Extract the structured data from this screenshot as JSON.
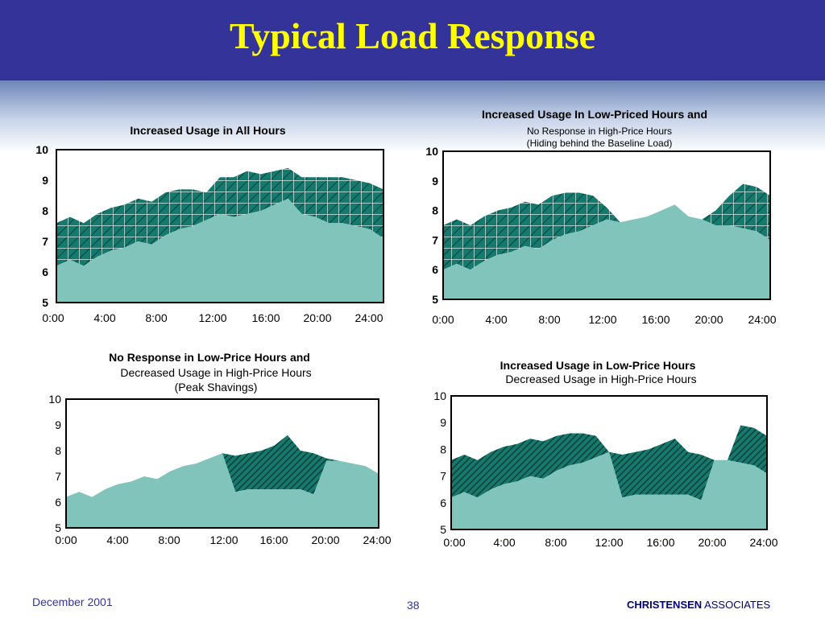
{
  "slide": {
    "title": "Typical Load Response",
    "footer": {
      "date": "December 2001",
      "page": "38",
      "company_bold": "CHRISTENSEN",
      "company_rest": "ASSOCIATES"
    }
  },
  "colors": {
    "header": "#333399",
    "title": "#ffff00",
    "baseline": "#80c4bb",
    "response": "#157a6e"
  },
  "chart_data": [
    {
      "type": "area",
      "title": "Increased Usage in All Hours",
      "subtitle": [
        "",
        ""
      ],
      "x_tick_labels": [
        "0:00",
        "4:00",
        "8:00",
        "12:00",
        "16:00",
        "20:00",
        "24:00"
      ],
      "y_ticks": [
        10,
        9,
        8,
        7,
        6,
        5
      ],
      "ylim": [
        5,
        10
      ],
      "x": [
        0,
        1,
        2,
        3,
        4,
        5,
        6,
        7,
        8,
        9,
        10,
        11,
        12,
        13,
        14,
        15,
        16,
        17,
        18,
        19,
        20,
        21,
        22,
        23,
        24
      ],
      "series": [
        {
          "values": [
            6.2,
            6.4,
            6.2,
            6.5,
            6.7,
            6.8,
            7.0,
            6.9,
            7.2,
            7.4,
            7.5,
            7.7,
            7.9,
            7.8,
            7.9,
            8.0,
            8.2,
            8.4,
            7.9,
            7.8,
            7.6,
            7.6,
            7.5,
            7.4,
            7.1
          ]
        },
        {
          "values": [
            7.6,
            7.8,
            7.6,
            7.9,
            8.1,
            8.2,
            8.4,
            8.3,
            8.6,
            8.7,
            8.7,
            8.6,
            9.1,
            9.1,
            9.3,
            9.2,
            9.3,
            9.4,
            9.1,
            9.1,
            9.1,
            9.1,
            9.0,
            8.9,
            8.7
          ]
        }
      ]
    },
    {
      "type": "area",
      "title": "Increased Usage In Low-Priced Hours and",
      "subtitle": [
        "No Response in High-Price Hours",
        "(Hiding behind the Baseline Load)"
      ],
      "x_tick_labels": [
        "0:00",
        "4:00",
        "8:00",
        "12:00",
        "16:00",
        "20:00",
        "24:00"
      ],
      "y_ticks": [
        10,
        9,
        8,
        7,
        6,
        5
      ],
      "ylim": [
        5,
        10
      ],
      "x": [
        0,
        1,
        2,
        3,
        4,
        5,
        6,
        7,
        8,
        9,
        10,
        11,
        12,
        13,
        14,
        15,
        16,
        17,
        18,
        19,
        20,
        21,
        22,
        23,
        24
      ],
      "series": [
        {
          "values": [
            6.0,
            6.2,
            6.0,
            6.3,
            6.5,
            6.6,
            6.8,
            6.7,
            7.0,
            7.2,
            7.3,
            7.5,
            7.7,
            7.6,
            7.7,
            7.8,
            8.0,
            8.2,
            7.8,
            7.7,
            7.5,
            7.5,
            7.4,
            7.3,
            7.0
          ]
        },
        {
          "values": [
            7.5,
            7.7,
            7.5,
            7.8,
            8.0,
            8.1,
            8.3,
            8.2,
            8.5,
            8.6,
            8.6,
            8.5,
            8.1,
            7.6,
            7.7,
            7.8,
            8.0,
            8.2,
            7.8,
            7.7,
            8.0,
            8.5,
            8.9,
            8.8,
            8.5
          ]
        }
      ]
    },
    {
      "type": "area",
      "title": "No Response in Low-Price Hours and",
      "subtitle": [
        "Decreased Usage in High-Price Hours",
        "(Peak Shavings)"
      ],
      "x_tick_labels": [
        "0:00",
        "4:00",
        "8:00",
        "12:00",
        "16:00",
        "20:00",
        "24:00"
      ],
      "y_ticks": [
        10,
        9,
        8,
        7,
        6,
        5
      ],
      "ylim": [
        5,
        10
      ],
      "x": [
        0,
        1,
        2,
        3,
        4,
        5,
        6,
        7,
        8,
        9,
        10,
        11,
        12,
        13,
        14,
        15,
        16,
        17,
        18,
        19,
        20,
        21,
        22,
        23,
        24
      ],
      "series": [
        {
          "values": [
            6.2,
            6.4,
            6.2,
            6.5,
            6.7,
            6.8,
            7.0,
            6.9,
            7.2,
            7.4,
            7.5,
            7.7,
            7.9,
            6.4,
            6.5,
            6.5,
            6.5,
            6.5,
            6.5,
            6.3,
            7.6,
            7.6,
            7.5,
            7.4,
            7.1
          ]
        },
        {
          "values": [
            6.2,
            6.4,
            6.2,
            6.5,
            6.7,
            6.8,
            7.0,
            6.9,
            7.2,
            7.4,
            7.5,
            7.7,
            7.9,
            7.8,
            7.9,
            8.0,
            8.2,
            8.6,
            8.0,
            7.9,
            7.7,
            7.6,
            7.5,
            7.4,
            7.1
          ]
        }
      ]
    },
    {
      "type": "area",
      "title": "Increased Usage in Low-Price Hours",
      "subtitle": [
        "Decreased Usage in High-Price Hours",
        ""
      ],
      "x_tick_labels": [
        "0:00",
        "4:00",
        "8:00",
        "12:00",
        "16:00",
        "20:00",
        "24:00"
      ],
      "y_ticks": [
        10,
        9,
        8,
        7,
        6,
        5
      ],
      "ylim": [
        5,
        10
      ],
      "x": [
        0,
        1,
        2,
        3,
        4,
        5,
        6,
        7,
        8,
        9,
        10,
        11,
        12,
        13,
        14,
        15,
        16,
        17,
        18,
        19,
        20,
        21,
        22,
        23,
        24
      ],
      "series": [
        {
          "values": [
            6.2,
            6.4,
            6.2,
            6.5,
            6.7,
            6.8,
            7.0,
            6.9,
            7.2,
            7.4,
            7.5,
            7.7,
            7.9,
            6.2,
            6.3,
            6.3,
            6.3,
            6.3,
            6.3,
            6.1,
            7.6,
            7.6,
            7.5,
            7.4,
            7.1
          ]
        },
        {
          "values": [
            7.6,
            7.8,
            7.6,
            7.9,
            8.1,
            8.2,
            8.4,
            8.3,
            8.5,
            8.6,
            8.6,
            8.5,
            7.9,
            7.8,
            7.9,
            8.0,
            8.2,
            8.4,
            7.9,
            7.8,
            7.6,
            7.6,
            8.9,
            8.8,
            8.5
          ]
        }
      ]
    }
  ]
}
